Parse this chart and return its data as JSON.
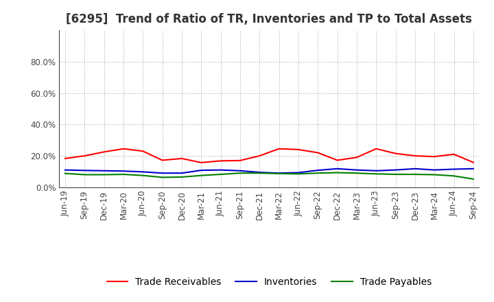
{
  "title": "[6295]  Trend of Ratio of TR, Inventories and TP to Total Assets",
  "x_labels": [
    "Jun-19",
    "Sep-19",
    "Dec-19",
    "Mar-20",
    "Jun-20",
    "Sep-20",
    "Dec-20",
    "Mar-21",
    "Jun-21",
    "Sep-21",
    "Dec-21",
    "Mar-22",
    "Jun-22",
    "Sep-22",
    "Dec-22",
    "Mar-23",
    "Jun-23",
    "Sep-23",
    "Dec-23",
    "Mar-24",
    "Jun-24",
    "Sep-24"
  ],
  "trade_receivables": [
    0.183,
    0.2,
    0.225,
    0.245,
    0.23,
    0.172,
    0.183,
    0.157,
    0.168,
    0.17,
    0.2,
    0.245,
    0.24,
    0.22,
    0.172,
    0.19,
    0.245,
    0.215,
    0.2,
    0.195,
    0.21,
    0.158
  ],
  "inventories": [
    0.11,
    0.107,
    0.105,
    0.103,
    0.098,
    0.09,
    0.09,
    0.108,
    0.11,
    0.105,
    0.095,
    0.09,
    0.093,
    0.108,
    0.118,
    0.11,
    0.105,
    0.11,
    0.118,
    0.11,
    0.115,
    0.118
  ],
  "trade_payables": [
    0.088,
    0.08,
    0.08,
    0.082,
    0.075,
    0.063,
    0.065,
    0.075,
    0.082,
    0.09,
    0.09,
    0.087,
    0.085,
    0.09,
    0.093,
    0.09,
    0.085,
    0.082,
    0.082,
    0.08,
    0.072,
    0.052
  ],
  "tr_color": "#ff0000",
  "inv_color": "#0000cc",
  "tp_color": "#008000",
  "legend_labels": [
    "Trade Receivables",
    "Inventories",
    "Trade Payables"
  ],
  "background_color": "#ffffff",
  "grid_color": "#999999",
  "title_fontsize": 12,
  "tick_fontsize": 8.5,
  "legend_fontsize": 10
}
